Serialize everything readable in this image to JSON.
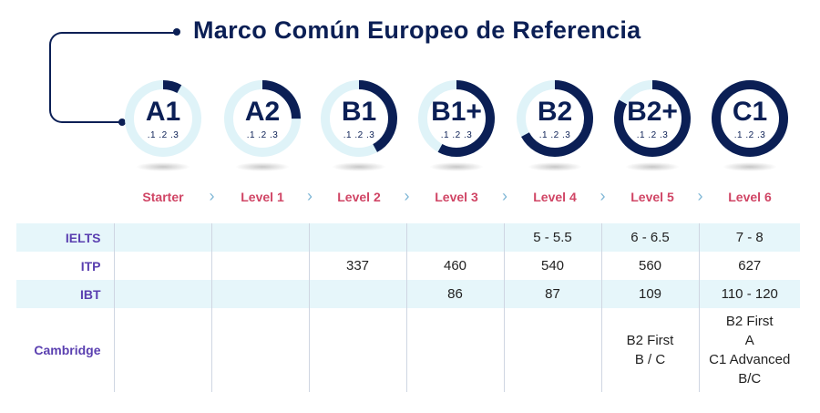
{
  "title": "Marco Común Europeo de Referencia",
  "levels": [
    {
      "code": "A1",
      "sub": ".1 .2 .3",
      "progress": 0.08,
      "label": "Starter"
    },
    {
      "code": "A2",
      "sub": ".1 .2 .3",
      "progress": 0.25,
      "label": "Level 1"
    },
    {
      "code": "B1",
      "sub": ".1 .2 .3",
      "progress": 0.42,
      "label": "Level 2"
    },
    {
      "code": "B1+",
      "sub": ".1 .2 .3",
      "progress": 0.58,
      "label": "Level 3"
    },
    {
      "code": "B2",
      "sub": ".1 .2 .3",
      "progress": 0.67,
      "label": "Level 4"
    },
    {
      "code": "B2+",
      "sub": ".1 .2 .3",
      "progress": 0.83,
      "label": "Level 5"
    },
    {
      "code": "C1",
      "sub": ".1 .2 .3",
      "progress": 1.0,
      "label": "Level 6"
    }
  ],
  "chevron": "›",
  "table": {
    "rows": [
      {
        "name": "IELTS",
        "cells": [
          "",
          "",
          "",
          "",
          "5 - 5.5",
          "6 - 6.5",
          "7 - 8"
        ]
      },
      {
        "name": "ITP",
        "cells": [
          "",
          "",
          "337",
          "460",
          "540",
          "560",
          "627"
        ]
      },
      {
        "name": "IBT",
        "cells": [
          "",
          "",
          "",
          "86",
          "87",
          "109",
          "110 - 120"
        ]
      },
      {
        "name": "Cambridge",
        "cells": [
          "",
          "",
          "",
          "",
          "",
          "B2 First\nB / C",
          "B2 First\nA\nC1 Advanced\nB/C"
        ]
      }
    ]
  },
  "colors": {
    "navy": "#0b1f55",
    "ring_track": "#dff3f8",
    "level_label": "#d04565",
    "row_label": "#5a3fb0",
    "row_shade": "#e6f6fa"
  }
}
